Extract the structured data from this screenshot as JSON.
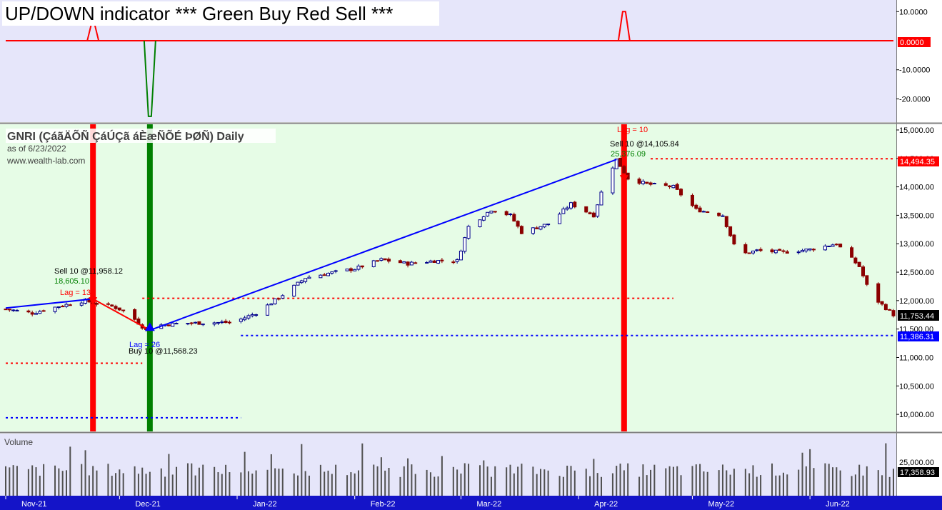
{
  "indicator_pane": {
    "title": "UP/DOWN indicator *** Green Buy Red Sell ***",
    "yticks": [
      10,
      0,
      -10,
      -20
    ],
    "ytick_labels": [
      "10.0000",
      "0.0000",
      "-10.0000",
      "-20.0000"
    ],
    "zero_label": "0.0000",
    "colors": {
      "background": "#e6e6fa",
      "zero_line": "#ff0000",
      "buy": "#008000",
      "sell": "#ff0000"
    }
  },
  "price_pane": {
    "symbol_label": "GNRI (ÇáãÄÕÑ ÇáÚÇã áÈæÑÕÉ ÞØÑ) Daily",
    "as_of": "as of 6/23/2022",
    "website": "www.wealth-lab.com",
    "yticks": [
      10000,
      10500,
      11000,
      11500,
      12000,
      12500,
      13000,
      13500,
      14000,
      14500,
      15000
    ],
    "ytick_labels": [
      "10,000.00",
      "10,500.00",
      "11,000.00",
      "11,500.00",
      "12,000.00",
      "12,500.00",
      "13,000.00",
      "13,500.00",
      "14,000.00",
      "14,500.00",
      "15,000.00"
    ],
    "last_price_label": "11,753.44",
    "resistance_label": "14,494.35",
    "support_label": "11,386.31",
    "annotations": {
      "sell1_text": "Sell 10 @11,958.12",
      "sell1_sub": "18,605.10",
      "sell1_lag": "Lag = 13",
      "buy1_text": "Buy 10 @11,568.23",
      "buy1_lag": "Lag = 26",
      "sell2_lag": "Lag = 10",
      "sell2_text": "Sell 10 @14,105.84",
      "sell2_sub": "25,376.09"
    },
    "colors": {
      "background": "#e6fce6",
      "up_candle": "#00008b",
      "down_candle": "#8b0000",
      "trend_line": "#0000ff"
    }
  },
  "volume_pane": {
    "label": "Volume",
    "ytick_label": "25,000.00",
    "last_label": "17,358.93",
    "colors": {
      "background": "#e6e6fa",
      "bar": "#505050"
    }
  },
  "date_axis": {
    "labels": [
      "Nov-21",
      "Dec-21",
      "Jan-22",
      "Feb-22",
      "Mar-22",
      "Apr-22",
      "May-22",
      "Jun-22"
    ],
    "background": "#1414c8"
  },
  "chart_data": {
    "type": "candlestick",
    "title": "UP/DOWN indicator *** Green Buy Red Sell ***",
    "x_start": "2021-11-01",
    "x_end": "2022-06-23",
    "ylim": [
      9700,
      15100
    ],
    "close_checkpoints": [
      {
        "date": "2021-11-01",
        "close": 11850
      },
      {
        "date": "2021-11-08",
        "close": 11780
      },
      {
        "date": "2021-11-15",
        "close": 11900
      },
      {
        "date": "2021-11-22",
        "close": 12000
      },
      {
        "date": "2021-11-24",
        "close": 11960
      },
      {
        "date": "2021-11-29",
        "close": 11900
      },
      {
        "date": "2021-12-03",
        "close": 11800
      },
      {
        "date": "2021-12-08",
        "close": 11480
      },
      {
        "date": "2021-12-10",
        "close": 11560
      },
      {
        "date": "2021-12-17",
        "close": 11600
      },
      {
        "date": "2021-12-31",
        "close": 11620
      },
      {
        "date": "2022-01-06",
        "close": 11780
      },
      {
        "date": "2022-01-12",
        "close": 12050
      },
      {
        "date": "2022-01-19",
        "close": 12400
      },
      {
        "date": "2022-01-25",
        "close": 12480
      },
      {
        "date": "2022-02-01",
        "close": 12560
      },
      {
        "date": "2022-02-08",
        "close": 12720
      },
      {
        "date": "2022-02-15",
        "close": 12650
      },
      {
        "date": "2022-02-22",
        "close": 12700
      },
      {
        "date": "2022-02-28",
        "close": 12700
      },
      {
        "date": "2022-03-03",
        "close": 13300
      },
      {
        "date": "2022-03-09",
        "close": 13600
      },
      {
        "date": "2022-03-14",
        "close": 13500
      },
      {
        "date": "2022-03-17",
        "close": 13200
      },
      {
        "date": "2022-03-24",
        "close": 13350
      },
      {
        "date": "2022-03-30",
        "close": 13700
      },
      {
        "date": "2022-04-05",
        "close": 13500
      },
      {
        "date": "2022-04-08",
        "close": 14100
      },
      {
        "date": "2022-04-11",
        "close": 14480
      },
      {
        "date": "2022-04-14",
        "close": 14150
      },
      {
        "date": "2022-04-19",
        "close": 14050
      },
      {
        "date": "2022-04-26",
        "close": 14000
      },
      {
        "date": "2022-05-02",
        "close": 13600
      },
      {
        "date": "2022-05-09",
        "close": 13500
      },
      {
        "date": "2022-05-13",
        "close": 12800
      },
      {
        "date": "2022-05-18",
        "close": 12880
      },
      {
        "date": "2022-05-25",
        "close": 12850
      },
      {
        "date": "2022-06-01",
        "close": 12900
      },
      {
        "date": "2022-06-08",
        "close": 13000
      },
      {
        "date": "2022-06-14",
        "close": 12600
      },
      {
        "date": "2022-06-17",
        "close": 12100
      },
      {
        "date": "2022-06-23",
        "close": 11753.44
      }
    ],
    "trendlines": [
      {
        "from": {
          "date": "2021-11-01",
          "price": 11870
        },
        "to": {
          "date": "2021-11-24",
          "price": 12030
        }
      },
      {
        "from": {
          "date": "2021-11-24",
          "price": 12030
        },
        "to": {
          "date": "2021-12-09",
          "price": 11480
        }
      },
      {
        "from": {
          "date": "2021-12-09",
          "price": 11480
        },
        "to": {
          "date": "2022-04-11",
          "price": 14480
        }
      }
    ],
    "level_lines": [
      {
        "price": 12040,
        "from": "2021-12-07",
        "to": "2022-04-26",
        "color": "#ff0000"
      },
      {
        "price": 14494.35,
        "from": "2022-04-20",
        "to": "2022-06-23",
        "color": "#ff0000"
      },
      {
        "price": 11386.31,
        "from": "2022-01-02",
        "to": "2022-06-23",
        "color": "#0000ff"
      },
      {
        "price": 10900,
        "from": "2021-11-01",
        "to": "2021-12-07",
        "color": "#ff0000"
      },
      {
        "price": 9940,
        "from": "2021-11-01",
        "to": "2022-01-02",
        "color": "#0000ff"
      }
    ],
    "signals": [
      {
        "type": "sell",
        "date": "2021-11-24",
        "price": 11958.12
      },
      {
        "type": "buy",
        "date": "2021-12-09",
        "price": 11568.23
      },
      {
        "type": "sell",
        "date": "2022-04-13",
        "price": 14105.84
      }
    ],
    "indicator_spikes": [
      {
        "date": "2021-11-24",
        "value": 6
      },
      {
        "date": "2021-12-09",
        "value": -26
      },
      {
        "date": "2022-04-13",
        "value": 10
      }
    ],
    "indicator_ylim": [
      -28,
      14
    ],
    "volume_ylim": [
      0,
      40000
    ],
    "volume_last": 17358.93
  }
}
